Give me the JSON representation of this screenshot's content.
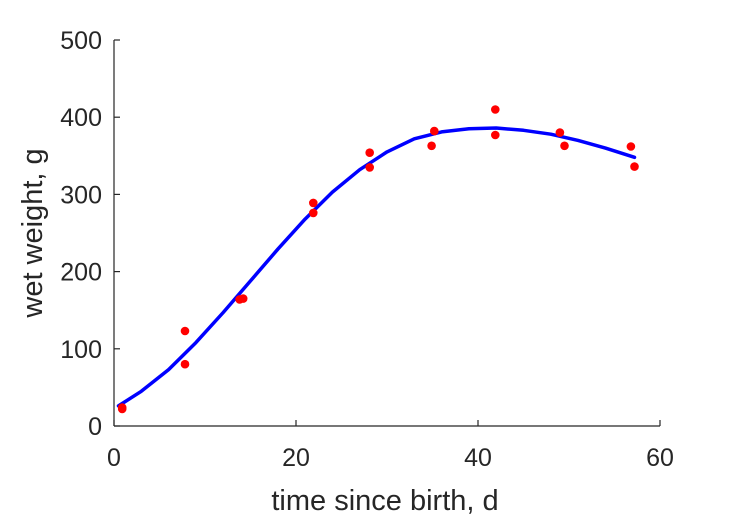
{
  "chart_data": {
    "type": "scatter",
    "title": "",
    "xlabel": "time since birth, d",
    "ylabel": "wet weight, g",
    "xlim": [
      0,
      60
    ],
    "ylim": [
      0,
      500
    ],
    "xticks": [
      0,
      20,
      40,
      60
    ],
    "yticks": [
      0,
      100,
      200,
      300,
      400,
      500
    ],
    "xtick_labels": [
      "0",
      "20",
      "40",
      "60"
    ],
    "ytick_labels": [
      "0",
      "100",
      "200",
      "300",
      "400",
      "500"
    ],
    "grid": false,
    "legend": "none",
    "series": [
      {
        "type": "scatter",
        "color": "#ff0000",
        "points": [
          [
            0.9,
            22
          ],
          [
            0.9,
            24
          ],
          [
            7.8,
            80
          ],
          [
            7.8,
            123
          ],
          [
            13.8,
            164
          ],
          [
            14.2,
            165
          ],
          [
            21.9,
            276
          ],
          [
            21.9,
            289
          ],
          [
            28.1,
            335
          ],
          [
            28.1,
            354
          ],
          [
            34.9,
            363
          ],
          [
            35.2,
            382
          ],
          [
            41.9,
            377
          ],
          [
            41.9,
            410
          ],
          [
            49.0,
            380
          ],
          [
            49.5,
            363
          ],
          [
            56.8,
            362
          ],
          [
            57.2,
            336
          ]
        ]
      },
      {
        "type": "line",
        "color": "#0000ff",
        "points": [
          [
            0.5,
            26
          ],
          [
            3,
            45
          ],
          [
            6,
            73
          ],
          [
            9,
            108
          ],
          [
            12,
            147
          ],
          [
            15,
            188
          ],
          [
            18,
            229
          ],
          [
            21,
            268
          ],
          [
            24,
            303
          ],
          [
            27,
            332
          ],
          [
            30,
            355
          ],
          [
            33,
            372
          ],
          [
            36,
            381
          ],
          [
            39,
            385
          ],
          [
            42,
            386
          ],
          [
            45,
            383
          ],
          [
            48,
            378
          ],
          [
            51,
            370
          ],
          [
            54,
            360
          ],
          [
            57.2,
            348
          ]
        ]
      }
    ]
  }
}
